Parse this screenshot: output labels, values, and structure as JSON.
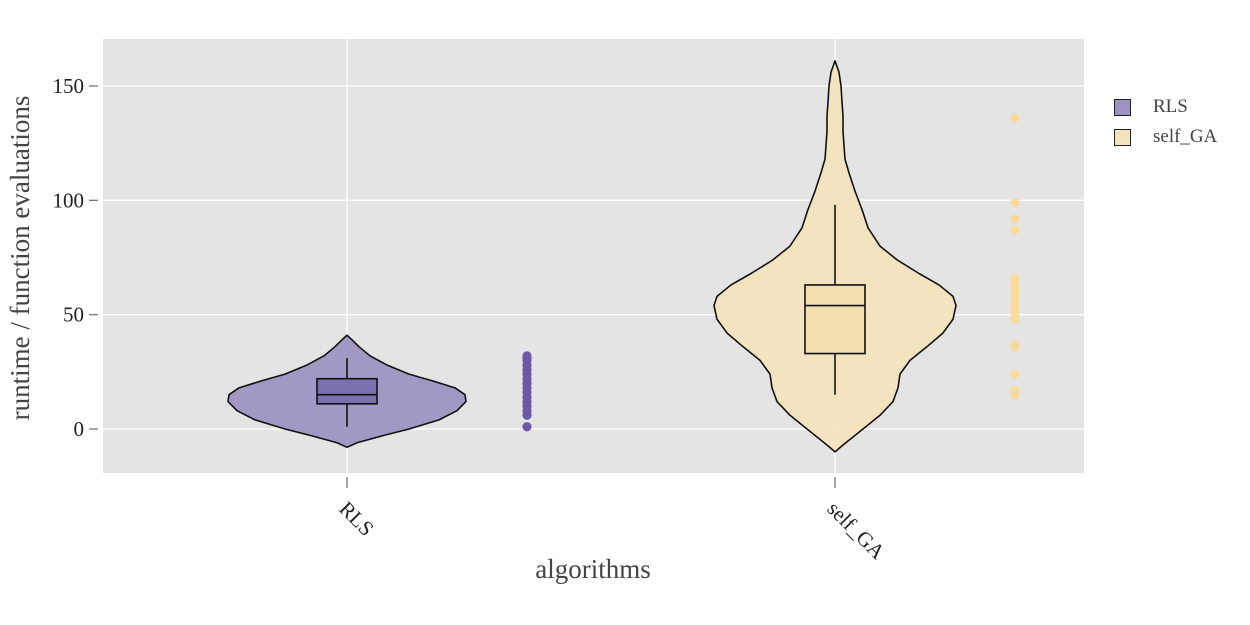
{
  "chart_data": {
    "type": "violin",
    "title": "",
    "xlabel": "algorithms",
    "ylabel": "runtime / function evaluations",
    "ylim": [
      -19,
      170
    ],
    "yticks": [
      0,
      50,
      100,
      150
    ],
    "categories": [
      "RLS",
      "self_GA"
    ],
    "grid": true,
    "legend_position": "right",
    "series": [
      {
        "name": "RLS",
        "color": "#9d93c1",
        "box_color": "#7b70ad",
        "point_color": "#6a5aa6",
        "box": {
          "whisker_low": 1,
          "q1": 11,
          "median": 15,
          "q3": 22,
          "whisker_high": 31
        },
        "violin_range": [
          -8,
          41
        ],
        "points": [
          1,
          6,
          8,
          10,
          12,
          14,
          16,
          18,
          20,
          22,
          24,
          26,
          28,
          30,
          31,
          32
        ]
      },
      {
        "name": "self_GA",
        "color": "#f3e3bd",
        "box_color": "#f3dfaf",
        "point_color": "#f9dc9c",
        "box": {
          "whisker_low": 15,
          "q1": 33,
          "median": 54,
          "q3": 63,
          "whisker_high": 98
        },
        "violin_range": [
          -10,
          161
        ],
        "points": [
          15,
          17,
          24,
          36,
          37,
          48,
          50,
          52,
          54,
          56,
          58,
          60,
          62,
          64,
          66,
          87,
          92,
          99,
          136
        ]
      }
    ]
  }
}
